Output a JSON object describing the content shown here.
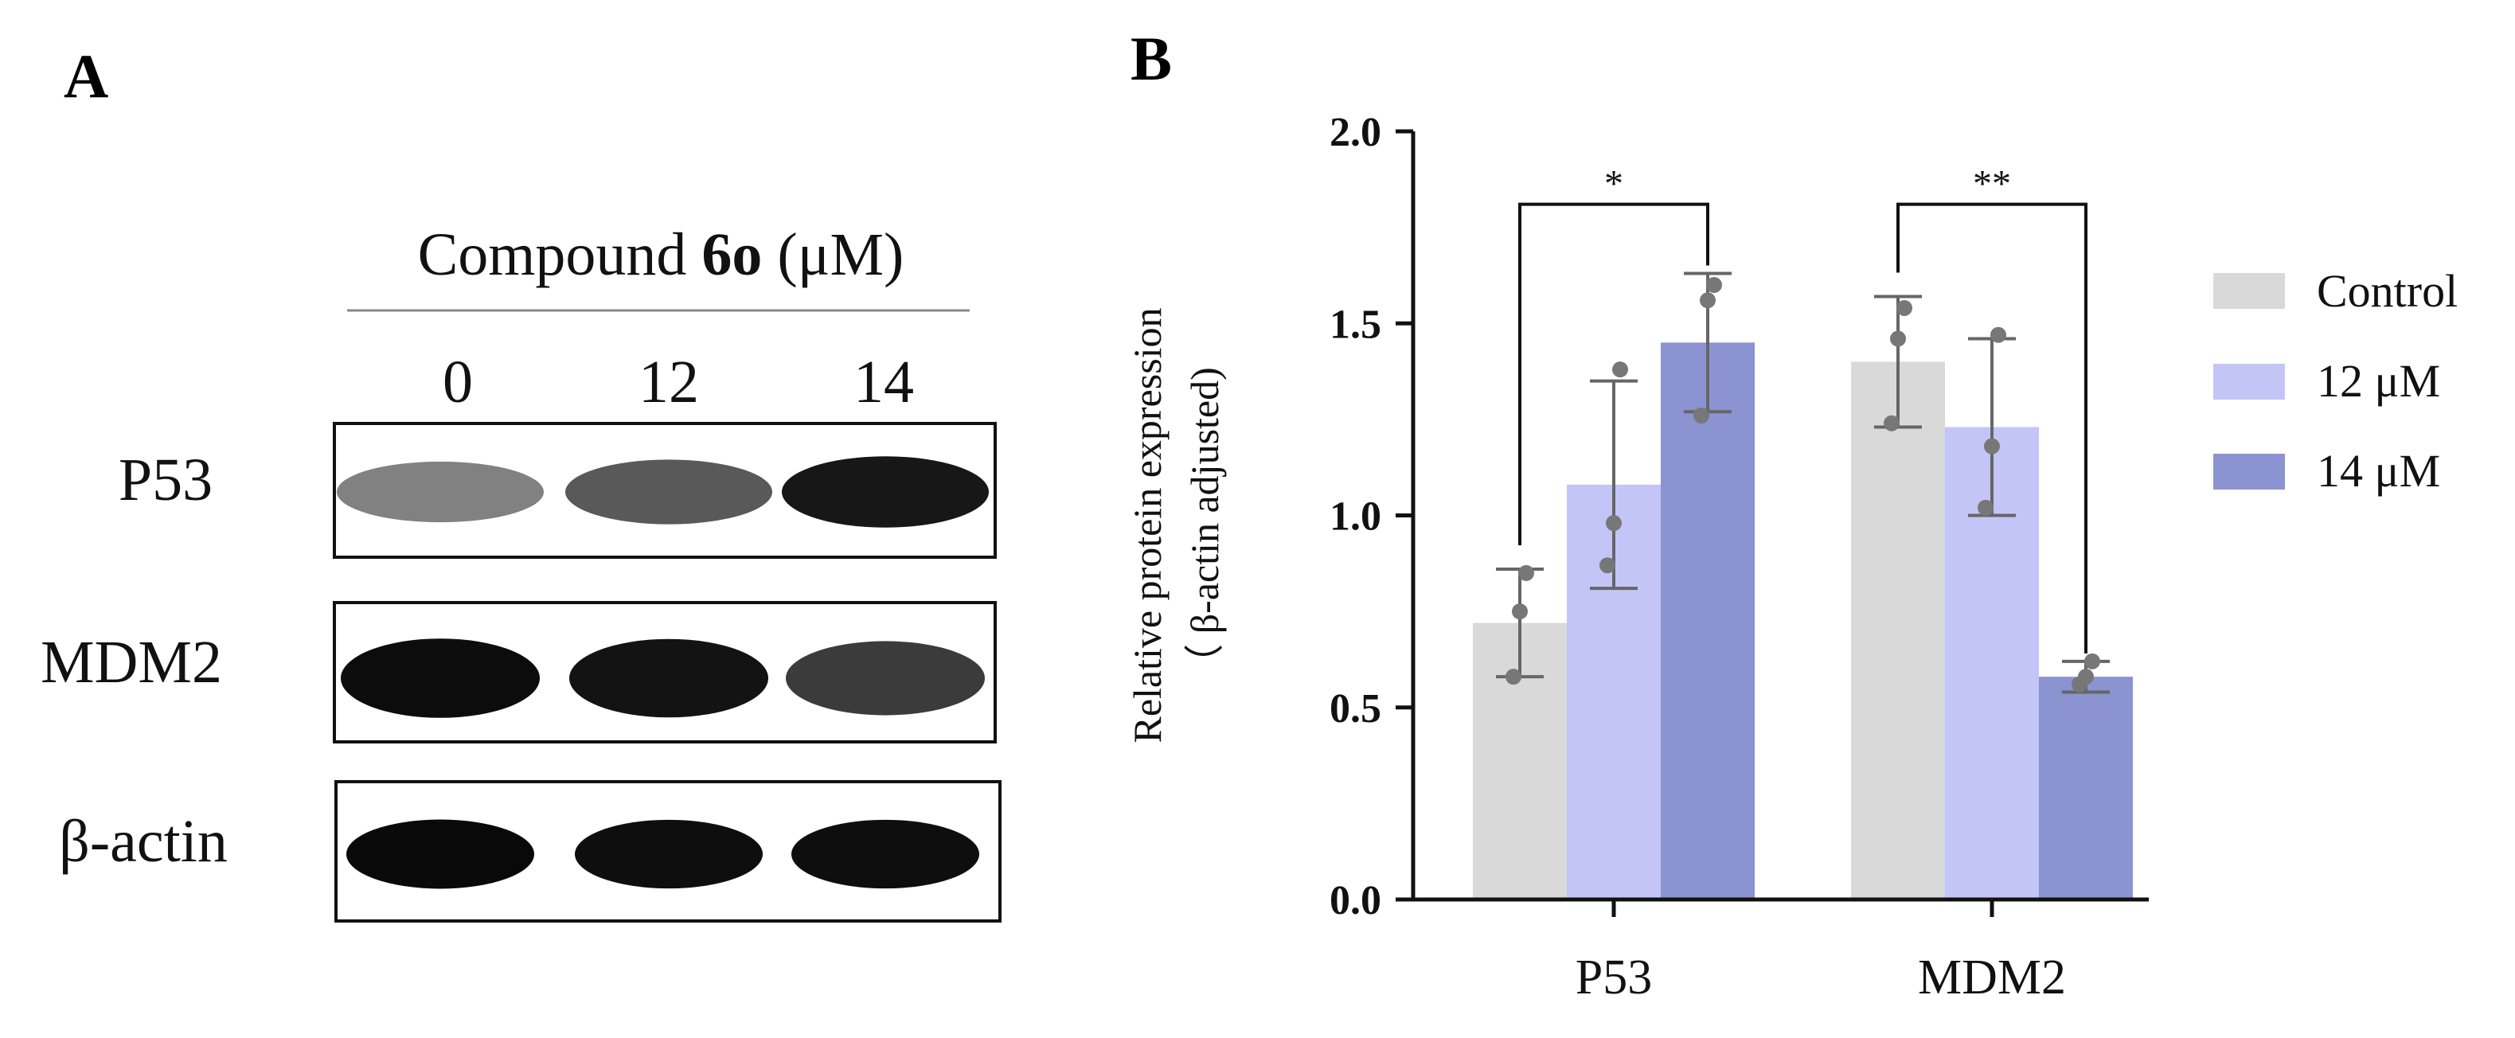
{
  "panel_a": {
    "label": "A",
    "header_prefix": "Compound ",
    "header_bold": "6o",
    "header_suffix": " (μM)",
    "lanes": [
      "0",
      "12",
      "14"
    ],
    "blots": [
      {
        "protein": "P53",
        "band_intensity": [
          0.45,
          0.62,
          0.9
        ]
      },
      {
        "protein": "MDM2",
        "band_intensity": [
          0.95,
          0.92,
          0.75
        ]
      },
      {
        "protein": "β-actin",
        "band_intensity": [
          0.96,
          0.94,
          0.94
        ]
      }
    ]
  },
  "chart_data": {
    "panel_label": "B",
    "type": "bar",
    "categories": [
      "P53",
      "MDM2"
    ],
    "series": [
      {
        "name": "Control",
        "color": "#d9d9d9",
        "values": [
          0.72,
          1.4
        ],
        "errors": [
          0.14,
          0.17
        ],
        "points": [
          [
            0.58,
            0.75,
            0.85
          ],
          [
            1.24,
            1.46,
            1.54
          ]
        ]
      },
      {
        "name": "12 μM",
        "color": "#c4c5f7",
        "values": [
          1.08,
          1.23
        ],
        "errors": [
          0.27,
          0.23
        ],
        "points": [
          [
            0.87,
            0.98,
            1.38
          ],
          [
            1.02,
            1.18,
            1.47
          ]
        ]
      },
      {
        "name": "14 μM",
        "color": "#8b93d0",
        "values": [
          1.45,
          0.58
        ],
        "errors": [
          0.18,
          0.04
        ],
        "points": [
          [
            1.26,
            1.56,
            1.6
          ],
          [
            0.56,
            0.58,
            0.62
          ]
        ]
      }
    ],
    "ylabel_line1": "Relative protein expression",
    "ylabel_line2": "（ β-actin adjusted)",
    "ylim": [
      0,
      2.0
    ],
    "yticks": [
      "0.0",
      "0.5",
      "1.0",
      "1.5",
      "2.0"
    ],
    "ytick_values": [
      0,
      0.5,
      1.0,
      1.5,
      2.0
    ],
    "significance": [
      {
        "category": 0,
        "from_series": 0,
        "to_series": 2,
        "label": "*"
      },
      {
        "category": 1,
        "from_series": 0,
        "to_series": 2,
        "label": "**"
      }
    ],
    "legend_position": "right"
  }
}
